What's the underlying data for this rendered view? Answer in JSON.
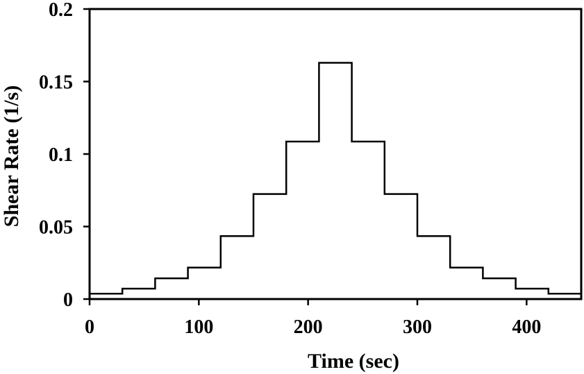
{
  "chart_data": {
    "type": "line",
    "title": "",
    "xlabel": "Time (sec)",
    "ylabel": "Shear Rate (1/s)",
    "xlim": [
      0,
      450
    ],
    "ylim": [
      0,
      0.2
    ],
    "x_ticks": [
      0,
      100,
      200,
      300,
      400
    ],
    "x_tick_labels": [
      "0",
      "100",
      "200",
      "300",
      "400"
    ],
    "y_ticks": [
      0,
      0.05,
      0.1,
      0.15,
      0.2
    ],
    "y_tick_labels": [
      "0",
      "0.05",
      "0.1",
      "0.15",
      "0.2"
    ],
    "grid": false,
    "legend": "none",
    "line_color": "#000000",
    "series": [
      {
        "step": "post",
        "x": [
          0,
          30,
          60,
          90,
          120,
          150,
          180,
          210,
          240,
          270,
          300,
          330,
          360,
          390,
          420,
          450
        ],
        "y": [
          0.0037,
          0.0072,
          0.0143,
          0.0217,
          0.0434,
          0.0724,
          0.1086,
          0.1629,
          0.1086,
          0.0724,
          0.0434,
          0.0217,
          0.0143,
          0.0072,
          0.0037,
          0.0037
        ]
      }
    ]
  }
}
